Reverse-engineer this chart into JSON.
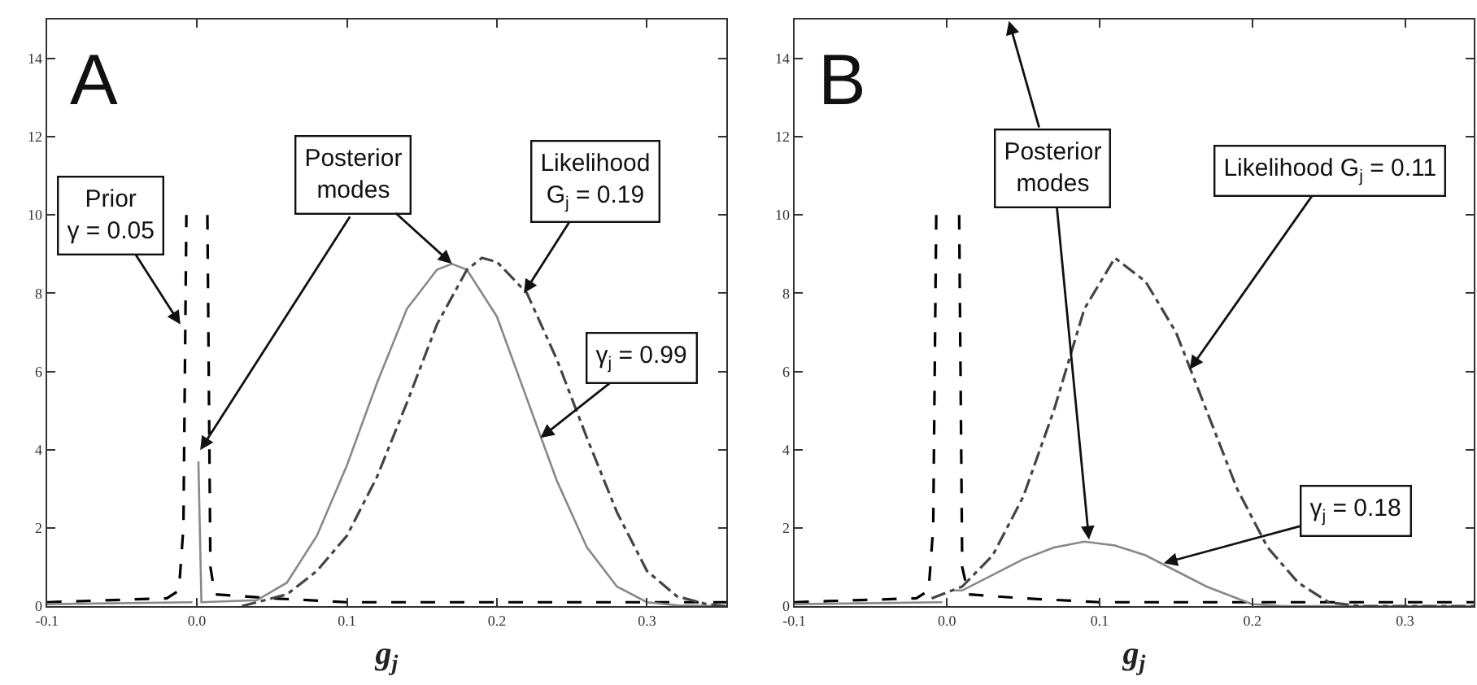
{
  "chart_data": [
    {
      "type": "line",
      "title": "A",
      "xlabel": "g$_{j}$",
      "xlim": [
        -0.1,
        0.353
      ],
      "ylim": [
        0,
        15
      ],
      "xticks": [
        -0.1,
        {
          "value": 0,
          "label": "0.0"
        },
        0.1,
        0.2,
        0.3
      ],
      "yticks": [
        0,
        2,
        4,
        6,
        8,
        10,
        12,
        14
      ],
      "marker": "none",
      "series": [
        {
          "color": "#000000",
          "line_style": "dashed",
          "x": [
            -0.1,
            -0.02,
            -0.012,
            -0.009,
            -0.007,
            -0.006,
            0.006,
            0.007,
            0.009,
            0.012,
            0.05,
            0.1,
            0.2,
            0.353
          ],
          "values": [
            0.1,
            0.2,
            0.4,
            2,
            10,
            null,
            null,
            10,
            1,
            0.3,
            0.2,
            0.1,
            0.1,
            0.1
          ]
        },
        {
          "color": "#888888",
          "line_style": "solid",
          "x": [
            -0.1,
            -0.003,
            -0.001,
            0,
            0.001,
            0.003,
            0.04,
            0.06,
            0.08,
            0.1,
            0.12,
            0.14,
            0.16,
            0.17,
            0.18,
            0.2,
            0.22,
            0.24,
            0.26,
            0.28,
            0.3,
            0.32,
            0.353
          ],
          "values": [
            0.05,
            0.1,
            null,
            null,
            3.7,
            0.1,
            0.15,
            0.6,
            1.8,
            3.6,
            5.7,
            7.6,
            8.6,
            8.75,
            8.6,
            7.4,
            5.3,
            3.2,
            1.5,
            0.5,
            0.1,
            0.02,
            0
          ]
        },
        {
          "color": "#444444",
          "line_style": "dashdot",
          "x": [
            0.03,
            0.06,
            0.08,
            0.1,
            0.12,
            0.14,
            0.16,
            0.18,
            0.19,
            0.2,
            0.22,
            0.24,
            0.26,
            0.28,
            0.3,
            0.32,
            0.34,
            0.353
          ],
          "values": [
            0,
            0.3,
            0.9,
            1.8,
            3.3,
            5.2,
            7.2,
            8.6,
            8.9,
            8.8,
            8.0,
            6.3,
            4.3,
            2.4,
            0.9,
            0.25,
            0.05,
            0
          ]
        }
      ],
      "annotations": [
        {
          "text": "Prior\nγ = 0.05",
          "x": -0.011,
          "y": 7.2
        },
        {
          "text": "Posterior\nmodes",
          "x": 0.17,
          "y": 8.75
        },
        {
          "text": "Likelihood\nG$_{j}$ = 0.19",
          "x": 0.218,
          "y": 8.0
        },
        {
          "text": "γ$_{j}$ = 0.99",
          "x": 0.229,
          "y": 4.3
        }
      ]
    },
    {
      "type": "line",
      "title": "B",
      "xlabel": "g$_{j}$",
      "xlim": [
        -0.1,
        0.345
      ],
      "ylim": [
        0,
        15
      ],
      "xticks": [
        -0.1,
        {
          "value": 0,
          "label": "0.0"
        },
        0.1,
        0.2,
        0.3
      ],
      "yticks": [
        0,
        2,
        4,
        6,
        8,
        10,
        12,
        14
      ],
      "marker": "none",
      "series": [
        {
          "color": "#000000",
          "line_style": "dashed",
          "x": [
            -0.1,
            -0.02,
            -0.012,
            -0.009,
            -0.007,
            -0.006,
            0.007,
            0.008,
            0.01,
            0.014,
            0.05,
            0.1,
            0.2,
            0.345
          ],
          "values": [
            0.1,
            0.2,
            0.4,
            2,
            10,
            null,
            null,
            10,
            1,
            0.3,
            0.2,
            0.1,
            0.1,
            0.1
          ]
        },
        {
          "color": "#888888",
          "line_style": "solid",
          "x": [
            -0.1,
            -0.003,
            -0.001,
            0.003,
            0.005,
            0.01,
            0.03,
            0.05,
            0.07,
            0.09,
            0.11,
            0.13,
            0.15,
            0.17,
            0.19,
            0.2,
            0.22,
            0.345
          ],
          "values": [
            0.05,
            0.1,
            null,
            null,
            0.4,
            0.4,
            0.8,
            1.2,
            1.5,
            1.65,
            1.55,
            1.3,
            0.9,
            0.5,
            0.2,
            0.05,
            0,
            0
          ]
        },
        {
          "color": "#444444",
          "line_style": "dashdot",
          "x": [
            -0.01,
            0.01,
            0.03,
            0.05,
            0.07,
            0.09,
            0.11,
            0.13,
            0.15,
            0.17,
            0.19,
            0.21,
            0.23,
            0.25,
            0.27,
            0.345
          ],
          "values": [
            0.2,
            0.5,
            1.3,
            2.8,
            5.0,
            7.6,
            8.9,
            8.3,
            7.0,
            5.0,
            3.0,
            1.5,
            0.6,
            0.1,
            0,
            0
          ]
        }
      ],
      "annotations": [
        {
          "text": "Posterior\nmodes",
          "x": 0.093,
          "y": 1.7
        },
        {
          "text": "Likelihood G$_{j}$ = 0.11",
          "x": 0.159,
          "y": 6.05
        },
        {
          "text": "γ$_{j}$ = 0.18",
          "x": 0.142,
          "y": 1.1
        }
      ]
    }
  ]
}
